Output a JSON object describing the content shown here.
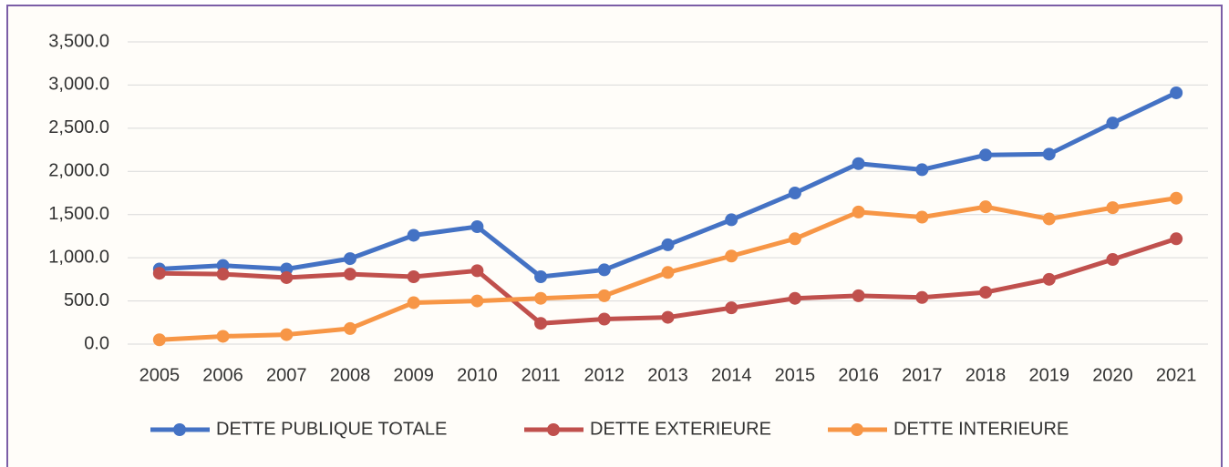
{
  "chart_data": {
    "type": "line",
    "categories": [
      "2005",
      "2006",
      "2007",
      "2008",
      "2009",
      "2010",
      "2011",
      "2012",
      "2013",
      "2014",
      "2015",
      "2016",
      "2017",
      "2018",
      "2019",
      "2020",
      "2021"
    ],
    "series": [
      {
        "name": "DETTE PUBLIQUE TOTALE",
        "color": "#4472c4",
        "values": [
          870,
          910,
          870,
          990,
          1260,
          1360,
          780,
          860,
          1150,
          1440,
          1750,
          2090,
          2020,
          2190,
          2200,
          2560,
          2910
        ]
      },
      {
        "name": "DETTE EXTERIEURE",
        "color": "#c0504d",
        "values": [
          820,
          810,
          770,
          810,
          780,
          850,
          240,
          290,
          310,
          420,
          530,
          560,
          540,
          600,
          750,
          980,
          1220
        ]
      },
      {
        "name": "DETTE INTERIEURE",
        "color": "#f79646",
        "values": [
          50,
          90,
          110,
          180,
          480,
          500,
          530,
          560,
          830,
          1020,
          1220,
          1530,
          1470,
          1590,
          1450,
          1580,
          1690
        ]
      }
    ],
    "ylim": [
      0,
      3500
    ],
    "yticks": [
      {
        "value": 0,
        "label": "0.0"
      },
      {
        "value": 500,
        "label": "500.0"
      },
      {
        "value": 1000,
        "label": "1,000.0"
      },
      {
        "value": 1500,
        "label": "1,500.0"
      },
      {
        "value": 2000,
        "label": "2,000.0"
      },
      {
        "value": 2500,
        "label": "2,500.0"
      },
      {
        "value": 3000,
        "label": "3,000.0"
      },
      {
        "value": 3500,
        "label": "3,500.0"
      }
    ],
    "grid": true,
    "legend": "bottom"
  }
}
